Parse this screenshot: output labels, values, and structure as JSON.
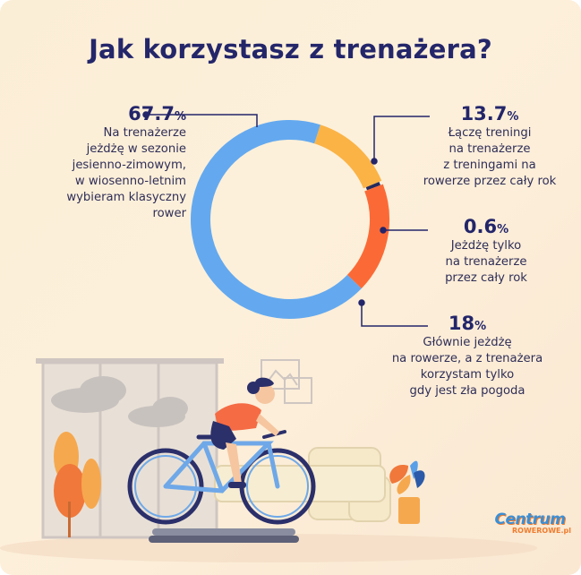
{
  "chart_data": {
    "type": "pie",
    "title": "Jak korzystasz z trenażera?",
    "slices": [
      {
        "value": 67.7,
        "label": "Na trenażerze jeżdżę w sezonie jesienno-zimowym, w wiosenno-letnim wybieram klasyczny rower",
        "color": "#64a9ef"
      },
      {
        "value": 13.7,
        "label": "Łączę treningi na trenażerze z treningami na rowerze przez cały rok",
        "color": "#fbb346"
      },
      {
        "value": 0.6,
        "label": "Jeżdżę tylko na trenażerze przez cały rok",
        "color": "#252a5c"
      },
      {
        "value": 18,
        "label": "Głównie jeżdżę na rowerze, a z trenażera korzystam tylko gdy jest zła pogoda",
        "color": "#fb6a36"
      }
    ]
  },
  "labels": [
    {
      "pct": "67.7",
      "unit": "%",
      "lines": [
        "Na trenażerze",
        "jeżdżę w sezonie",
        "jesienno-zimowym,",
        "w wiosenno-letnim",
        "wybieram klasyczny",
        "rower"
      ]
    },
    {
      "pct": "13.7",
      "unit": "%",
      "lines": [
        "Łączę treningi",
        "na trenażerze",
        "z treningami na",
        "rowerze przez cały rok"
      ]
    },
    {
      "pct": "0.6",
      "unit": "%",
      "lines": [
        "Jeżdżę tylko",
        "na trenażerze",
        "przez cały rok"
      ]
    },
    {
      "pct": "18",
      "unit": "%",
      "lines": [
        "Głównie jeżdżę",
        "na rowerze, a z trenażera",
        "korzystam tylko",
        "gdy jest zła pogoda"
      ]
    }
  ],
  "logo": {
    "name": "Centrum",
    "sub": "ROWEROWE.pl"
  },
  "colors": {
    "title": "#24266a",
    "leader": "#23256a"
  }
}
